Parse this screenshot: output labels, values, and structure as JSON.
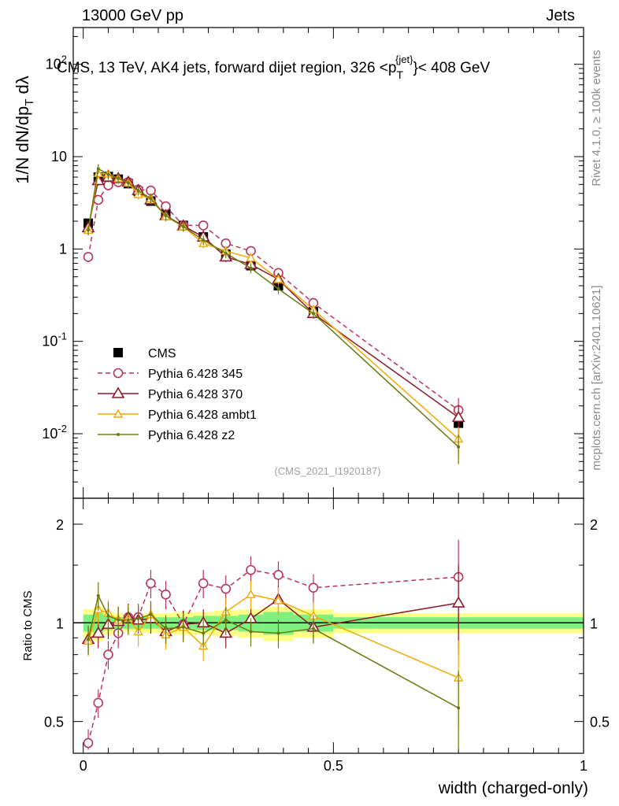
{
  "header": {
    "left": "13000 GeV pp",
    "right": "Jets",
    "title": "CMS, 13 TeV, AK4 jets, forward dijet region, 326 <p",
    "title_sub": "T",
    "title_sup": "{jet}",
    "title_end": "}< 408 GeV",
    "side_rivet": "Rivet 4.1.0, ≥ 100k events",
    "side_mcplots": "mcplots.cern.ch [arXiv:2401.10621]",
    "analysis_id": "(CMS_2021_I1920187)"
  },
  "colors": {
    "cms": "#000000",
    "p345": "#b8355a",
    "p370": "#8b1a2b",
    "ambt1": "#f2a900",
    "z2": "#6b7a10",
    "band_inner": "#7ff07f",
    "band_outer": "#ffff88"
  },
  "chart_data": [
    {
      "type": "scatter",
      "panel": "main",
      "yscale": "log",
      "ylabel": "1/N dN/dpT dλ",
      "ylim": [
        0.002,
        250
      ],
      "xlim": [
        -0.02,
        1.0
      ],
      "y_ticks": [
        "10^{-2}",
        "10^{-1}",
        "1",
        "10",
        "10^{2}"
      ],
      "x": [
        0.01,
        0.03,
        0.05,
        0.07,
        0.09,
        0.11,
        0.135,
        0.165,
        0.2,
        0.24,
        0.285,
        0.335,
        0.39,
        0.46,
        0.75
      ],
      "series": [
        {
          "name": "CMS",
          "style": "square",
          "values": [
            1.9,
            6.0,
            6.1,
            5.7,
            5.1,
            4.2,
            3.3,
            2.4,
            1.8,
            1.35,
            0.88,
            0.66,
            0.4,
            0.21,
            0.013
          ]
        },
        {
          "name": "Pythia 6.428 345",
          "style": "circle-dashed",
          "values": [
            0.82,
            3.4,
            4.9,
            5.3,
            5.3,
            4.4,
            4.3,
            2.9,
            1.8,
            1.8,
            1.15,
            0.95,
            0.55,
            0.26,
            0.018
          ]
        },
        {
          "name": "Pythia 6.428 370",
          "style": "triangle-open",
          "values": [
            1.7,
            5.5,
            6.0,
            5.8,
            5.3,
            4.3,
            3.4,
            2.3,
            1.78,
            1.35,
            0.82,
            0.68,
            0.47,
            0.2,
            0.015
          ]
        },
        {
          "name": "Pythia 6.428 ambt1",
          "style": "triangle-small",
          "values": [
            1.6,
            6.6,
            6.5,
            5.8,
            5.2,
            3.9,
            3.5,
            2.25,
            1.75,
            1.15,
            0.95,
            0.8,
            0.47,
            0.22,
            0.0088
          ]
        },
        {
          "name": "Pythia 6.428 z2",
          "style": "dot",
          "values": [
            1.6,
            7.4,
            6.4,
            5.8,
            5.2,
            4.3,
            3.5,
            2.3,
            1.75,
            1.25,
            0.9,
            0.62,
            0.37,
            0.2,
            0.0072
          ]
        }
      ]
    },
    {
      "type": "scatter",
      "panel": "ratio",
      "yscale": "log",
      "ylabel": "Ratio to CMS",
      "xlabel": "width (charged-only)",
      "ylim": [
        0.4,
        2.4
      ],
      "x_ticks": [
        "0",
        "0.5",
        "1"
      ],
      "y_ticks": [
        "0.5",
        "1",
        "2"
      ],
      "x": [
        0.01,
        0.03,
        0.05,
        0.07,
        0.09,
        0.11,
        0.135,
        0.165,
        0.2,
        0.24,
        0.285,
        0.335,
        0.39,
        0.46,
        0.75
      ],
      "series": [
        {
          "name": "Pythia 6.428 345",
          "values": [
            0.43,
            0.57,
            0.8,
            0.93,
            1.04,
            1.04,
            1.32,
            1.22,
            0.99,
            1.32,
            1.27,
            1.45,
            1.4,
            1.28,
            1.38
          ]
        },
        {
          "name": "Pythia 6.428 370",
          "values": [
            0.89,
            0.93,
            0.99,
            1.01,
            1.04,
            1.02,
            1.03,
            0.94,
            0.99,
            1.0,
            0.93,
            1.03,
            1.18,
            0.97,
            1.15
          ]
        },
        {
          "name": "Pythia 6.428 ambt1",
          "values": [
            0.88,
            1.1,
            1.07,
            1.02,
            1.03,
            0.94,
            1.06,
            0.92,
            0.97,
            0.85,
            1.08,
            1.22,
            1.17,
            1.05,
            0.68
          ]
        },
        {
          "name": "Pythia 6.428 z2",
          "values": [
            0.89,
            1.21,
            1.05,
            1.02,
            1.02,
            1.03,
            1.06,
            0.96,
            0.97,
            0.93,
            1.02,
            0.94,
            0.93,
            0.96,
            0.55
          ]
        }
      ]
    }
  ]
}
